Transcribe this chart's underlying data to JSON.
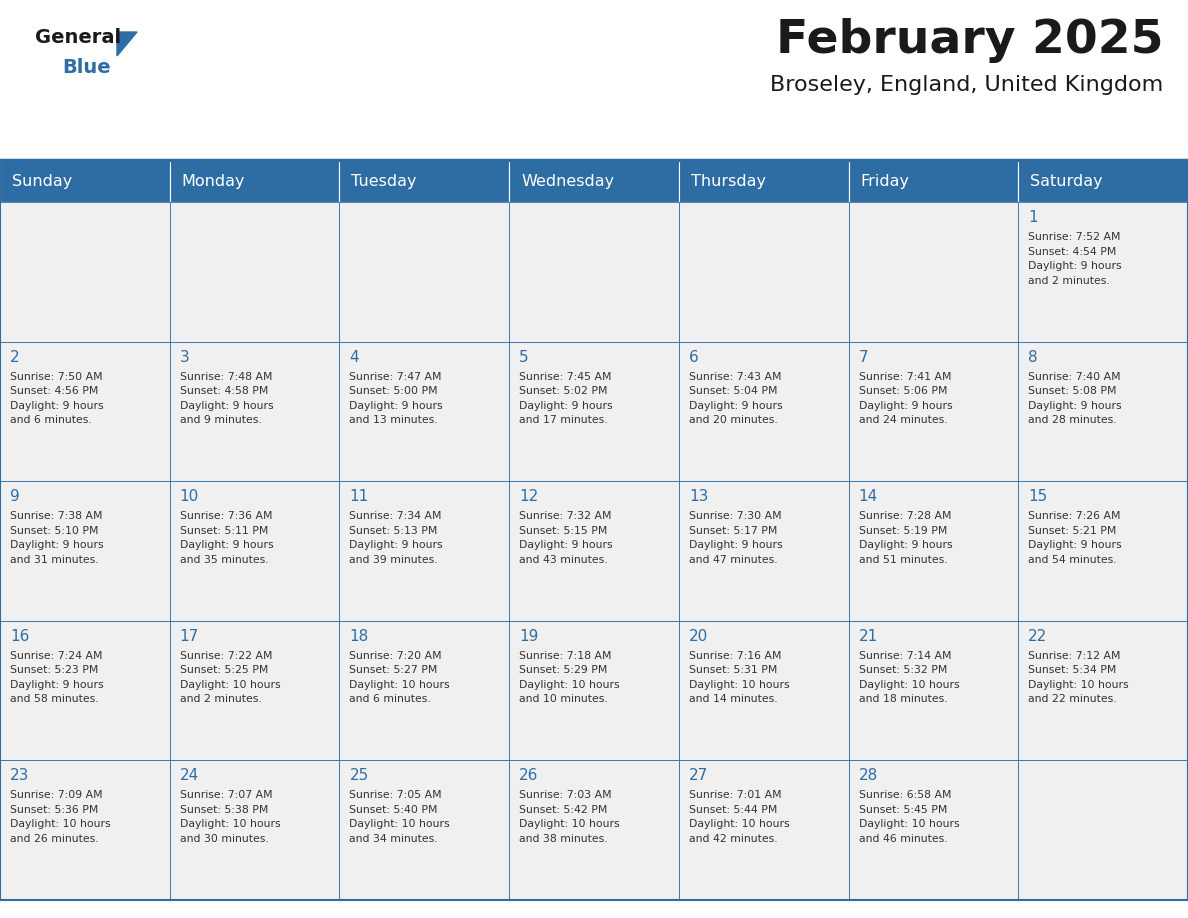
{
  "title": "February 2025",
  "subtitle": "Broseley, England, United Kingdom",
  "header_bg": "#2E6DA4",
  "header_text_color": "#FFFFFF",
  "cell_bg_light": "#F0F0F0",
  "border_color": "#2E6DA4",
  "day_headers": [
    "Sunday",
    "Monday",
    "Tuesday",
    "Wednesday",
    "Thursday",
    "Friday",
    "Saturday"
  ],
  "title_color": "#1A1A1A",
  "subtitle_color": "#1A1A1A",
  "cell_text_color": "#333333",
  "day_number_color": "#2E6DA4",
  "logo_text_color": "#1A1A1A",
  "logo_blue_color": "#2E6DA4",
  "weeks": [
    [
      {
        "day": "",
        "text": ""
      },
      {
        "day": "",
        "text": ""
      },
      {
        "day": "",
        "text": ""
      },
      {
        "day": "",
        "text": ""
      },
      {
        "day": "",
        "text": ""
      },
      {
        "day": "",
        "text": ""
      },
      {
        "day": "1",
        "text": "Sunrise: 7:52 AM\nSunset: 4:54 PM\nDaylight: 9 hours\nand 2 minutes."
      }
    ],
    [
      {
        "day": "2",
        "text": "Sunrise: 7:50 AM\nSunset: 4:56 PM\nDaylight: 9 hours\nand 6 minutes."
      },
      {
        "day": "3",
        "text": "Sunrise: 7:48 AM\nSunset: 4:58 PM\nDaylight: 9 hours\nand 9 minutes."
      },
      {
        "day": "4",
        "text": "Sunrise: 7:47 AM\nSunset: 5:00 PM\nDaylight: 9 hours\nand 13 minutes."
      },
      {
        "day": "5",
        "text": "Sunrise: 7:45 AM\nSunset: 5:02 PM\nDaylight: 9 hours\nand 17 minutes."
      },
      {
        "day": "6",
        "text": "Sunrise: 7:43 AM\nSunset: 5:04 PM\nDaylight: 9 hours\nand 20 minutes."
      },
      {
        "day": "7",
        "text": "Sunrise: 7:41 AM\nSunset: 5:06 PM\nDaylight: 9 hours\nand 24 minutes."
      },
      {
        "day": "8",
        "text": "Sunrise: 7:40 AM\nSunset: 5:08 PM\nDaylight: 9 hours\nand 28 minutes."
      }
    ],
    [
      {
        "day": "9",
        "text": "Sunrise: 7:38 AM\nSunset: 5:10 PM\nDaylight: 9 hours\nand 31 minutes."
      },
      {
        "day": "10",
        "text": "Sunrise: 7:36 AM\nSunset: 5:11 PM\nDaylight: 9 hours\nand 35 minutes."
      },
      {
        "day": "11",
        "text": "Sunrise: 7:34 AM\nSunset: 5:13 PM\nDaylight: 9 hours\nand 39 minutes."
      },
      {
        "day": "12",
        "text": "Sunrise: 7:32 AM\nSunset: 5:15 PM\nDaylight: 9 hours\nand 43 minutes."
      },
      {
        "day": "13",
        "text": "Sunrise: 7:30 AM\nSunset: 5:17 PM\nDaylight: 9 hours\nand 47 minutes."
      },
      {
        "day": "14",
        "text": "Sunrise: 7:28 AM\nSunset: 5:19 PM\nDaylight: 9 hours\nand 51 minutes."
      },
      {
        "day": "15",
        "text": "Sunrise: 7:26 AM\nSunset: 5:21 PM\nDaylight: 9 hours\nand 54 minutes."
      }
    ],
    [
      {
        "day": "16",
        "text": "Sunrise: 7:24 AM\nSunset: 5:23 PM\nDaylight: 9 hours\nand 58 minutes."
      },
      {
        "day": "17",
        "text": "Sunrise: 7:22 AM\nSunset: 5:25 PM\nDaylight: 10 hours\nand 2 minutes."
      },
      {
        "day": "18",
        "text": "Sunrise: 7:20 AM\nSunset: 5:27 PM\nDaylight: 10 hours\nand 6 minutes."
      },
      {
        "day": "19",
        "text": "Sunrise: 7:18 AM\nSunset: 5:29 PM\nDaylight: 10 hours\nand 10 minutes."
      },
      {
        "day": "20",
        "text": "Sunrise: 7:16 AM\nSunset: 5:31 PM\nDaylight: 10 hours\nand 14 minutes."
      },
      {
        "day": "21",
        "text": "Sunrise: 7:14 AM\nSunset: 5:32 PM\nDaylight: 10 hours\nand 18 minutes."
      },
      {
        "day": "22",
        "text": "Sunrise: 7:12 AM\nSunset: 5:34 PM\nDaylight: 10 hours\nand 22 minutes."
      }
    ],
    [
      {
        "day": "23",
        "text": "Sunrise: 7:09 AM\nSunset: 5:36 PM\nDaylight: 10 hours\nand 26 minutes."
      },
      {
        "day": "24",
        "text": "Sunrise: 7:07 AM\nSunset: 5:38 PM\nDaylight: 10 hours\nand 30 minutes."
      },
      {
        "day": "25",
        "text": "Sunrise: 7:05 AM\nSunset: 5:40 PM\nDaylight: 10 hours\nand 34 minutes."
      },
      {
        "day": "26",
        "text": "Sunrise: 7:03 AM\nSunset: 5:42 PM\nDaylight: 10 hours\nand 38 minutes."
      },
      {
        "day": "27",
        "text": "Sunrise: 7:01 AM\nSunset: 5:44 PM\nDaylight: 10 hours\nand 42 minutes."
      },
      {
        "day": "28",
        "text": "Sunrise: 6:58 AM\nSunset: 5:45 PM\nDaylight: 10 hours\nand 46 minutes."
      },
      {
        "day": "",
        "text": ""
      }
    ]
  ]
}
